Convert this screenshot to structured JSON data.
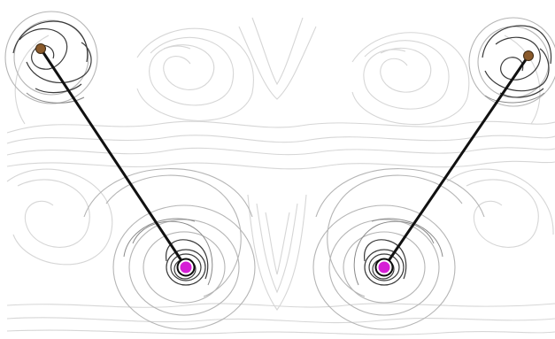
{
  "figure": {
    "background": "#ffffff",
    "streamline_colors": [
      "#d9d9d9",
      "#c8c8c8",
      "#a9a9a9",
      "#6e6e6e",
      "#2f2f2f"
    ],
    "arm_color": "#111111",
    "pivot_color": "#8a5a2b",
    "end_effector_color": "#d61fd6",
    "end_effector_ring": "#0d0d0d",
    "arms": [
      {
        "name": "left-arm"
      },
      {
        "name": "right-arm"
      }
    ]
  }
}
